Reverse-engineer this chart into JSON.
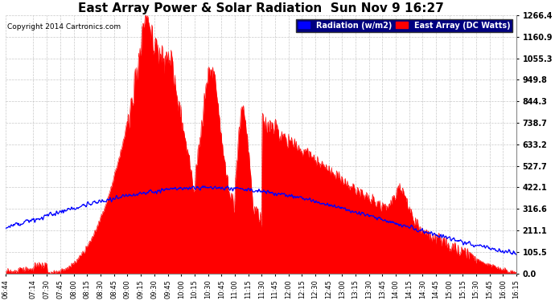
{
  "title": "East Array Power & Solar Radiation  Sun Nov 9 16:27",
  "copyright": "Copyright 2014 Cartronics.com",
  "legend_labels": [
    "Radiation (w/m2)",
    "East Array (DC Watts)"
  ],
  "y_ticks": [
    0.0,
    105.5,
    211.1,
    316.6,
    422.1,
    527.7,
    633.2,
    738.7,
    844.3,
    949.8,
    1055.3,
    1160.9,
    1266.4
  ],
  "ymax": 1266.4,
  "ymin": 0.0,
  "background_color": "#ffffff",
  "plot_bg_color": "#ffffff",
  "grid_color": "#bbbbbb",
  "title_fontsize": 11,
  "x_start_min": 404,
  "x_end_min": 975,
  "time_labels": [
    "06:44",
    "07:14",
    "07:30",
    "07:45",
    "08:00",
    "08:15",
    "08:30",
    "08:45",
    "09:00",
    "09:15",
    "09:30",
    "09:45",
    "10:00",
    "10:15",
    "10:30",
    "10:45",
    "11:00",
    "11:15",
    "11:30",
    "11:45",
    "12:00",
    "12:15",
    "12:30",
    "12:45",
    "13:00",
    "13:15",
    "13:30",
    "13:45",
    "14:00",
    "14:15",
    "14:30",
    "14:45",
    "15:00",
    "15:15",
    "15:30",
    "15:45",
    "16:00",
    "16:15"
  ],
  "time_positions": [
    404,
    434,
    450,
    465,
    480,
    495,
    510,
    525,
    540,
    555,
    570,
    585,
    600,
    615,
    630,
    645,
    660,
    675,
    690,
    705,
    720,
    735,
    750,
    765,
    780,
    795,
    810,
    825,
    840,
    855,
    870,
    885,
    900,
    915,
    930,
    945,
    960,
    975
  ]
}
